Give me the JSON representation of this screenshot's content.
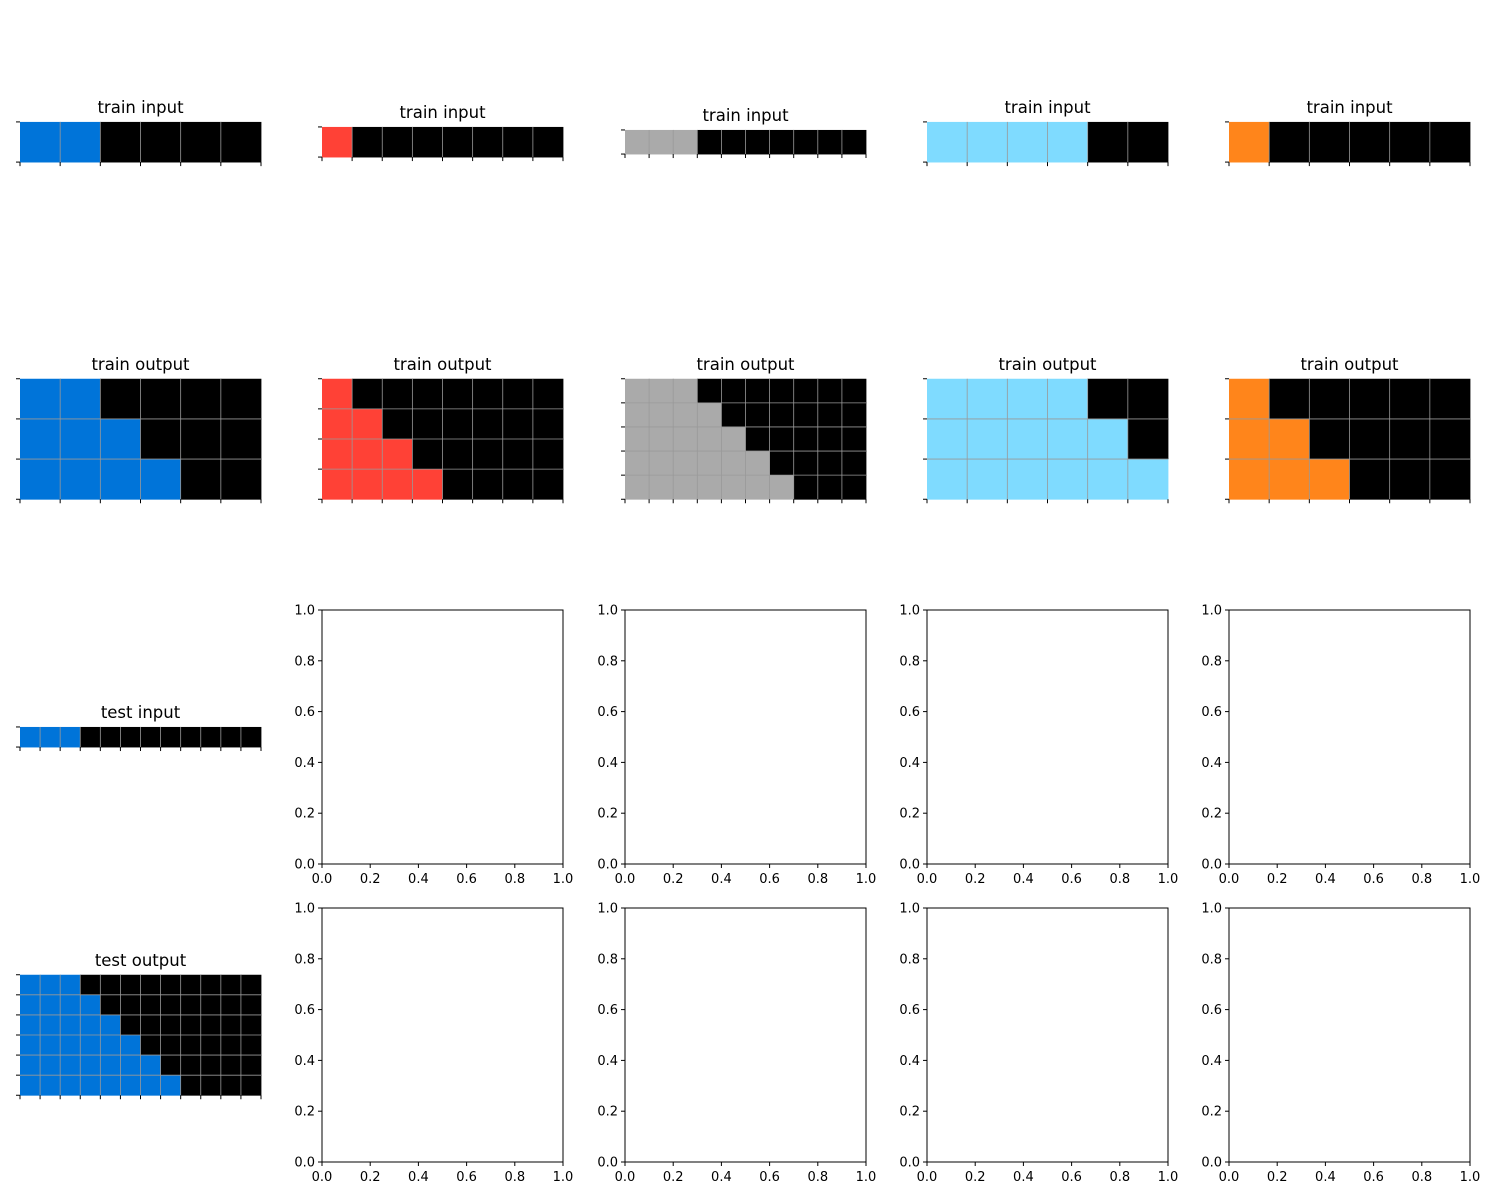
{
  "palette": {
    "0": "#000000",
    "1": "#0074D9",
    "2": "#FF4136",
    "5": "#AAAAAA",
    "7": "#FF851B",
    "8": "#7FDBFF"
  },
  "grid_line_color": "#999999",
  "panels": [
    {
      "id": "train-input-1",
      "title": "train input",
      "grid": [
        [
          1,
          1,
          0,
          0,
          0,
          0
        ]
      ]
    },
    {
      "id": "train-input-2",
      "title": "train input",
      "grid": [
        [
          2,
          0,
          0,
          0,
          0,
          0,
          0,
          0
        ]
      ]
    },
    {
      "id": "train-input-3",
      "title": "train input",
      "grid": [
        [
          5,
          5,
          5,
          0,
          0,
          0,
          0,
          0,
          0,
          0
        ]
      ]
    },
    {
      "id": "train-input-4",
      "title": "train input",
      "grid": [
        [
          8,
          8,
          8,
          8,
          0,
          0
        ]
      ]
    },
    {
      "id": "train-input-5",
      "title": "train input",
      "grid": [
        [
          7,
          0,
          0,
          0,
          0,
          0
        ]
      ]
    },
    {
      "id": "train-output-1",
      "title": "train output",
      "grid": [
        [
          1,
          1,
          0,
          0,
          0,
          0
        ],
        [
          1,
          1,
          1,
          0,
          0,
          0
        ],
        [
          1,
          1,
          1,
          1,
          0,
          0
        ]
      ]
    },
    {
      "id": "train-output-2",
      "title": "train output",
      "grid": [
        [
          2,
          0,
          0,
          0,
          0,
          0,
          0,
          0
        ],
        [
          2,
          2,
          0,
          0,
          0,
          0,
          0,
          0
        ],
        [
          2,
          2,
          2,
          0,
          0,
          0,
          0,
          0
        ],
        [
          2,
          2,
          2,
          2,
          0,
          0,
          0,
          0
        ]
      ]
    },
    {
      "id": "train-output-3",
      "title": "train output",
      "grid": [
        [
          5,
          5,
          5,
          0,
          0,
          0,
          0,
          0,
          0,
          0
        ],
        [
          5,
          5,
          5,
          5,
          0,
          0,
          0,
          0,
          0,
          0
        ],
        [
          5,
          5,
          5,
          5,
          5,
          0,
          0,
          0,
          0,
          0
        ],
        [
          5,
          5,
          5,
          5,
          5,
          5,
          0,
          0,
          0,
          0
        ],
        [
          5,
          5,
          5,
          5,
          5,
          5,
          5,
          0,
          0,
          0
        ]
      ]
    },
    {
      "id": "train-output-4",
      "title": "train output",
      "grid": [
        [
          8,
          8,
          8,
          8,
          0,
          0
        ],
        [
          8,
          8,
          8,
          8,
          8,
          0
        ],
        [
          8,
          8,
          8,
          8,
          8,
          8
        ]
      ]
    },
    {
      "id": "train-output-5",
      "title": "train output",
      "grid": [
        [
          7,
          0,
          0,
          0,
          0,
          0
        ],
        [
          7,
          7,
          0,
          0,
          0,
          0
        ],
        [
          7,
          7,
          7,
          0,
          0,
          0
        ]
      ]
    },
    {
      "id": "test-input",
      "title": "test input",
      "grid": [
        [
          1,
          1,
          1,
          0,
          0,
          0,
          0,
          0,
          0,
          0,
          0,
          0
        ]
      ]
    },
    {
      "id": "test-output",
      "title": "test output",
      "grid": [
        [
          1,
          1,
          1,
          0,
          0,
          0,
          0,
          0,
          0,
          0,
          0,
          0
        ],
        [
          1,
          1,
          1,
          1,
          0,
          0,
          0,
          0,
          0,
          0,
          0,
          0
        ],
        [
          1,
          1,
          1,
          1,
          1,
          0,
          0,
          0,
          0,
          0,
          0,
          0
        ],
        [
          1,
          1,
          1,
          1,
          1,
          1,
          0,
          0,
          0,
          0,
          0,
          0
        ],
        [
          1,
          1,
          1,
          1,
          1,
          1,
          1,
          0,
          0,
          0,
          0,
          0
        ],
        [
          1,
          1,
          1,
          1,
          1,
          1,
          1,
          1,
          0,
          0,
          0,
          0
        ]
      ]
    }
  ],
  "empty_axes": {
    "count": 8,
    "xticks": [
      "0.0",
      "0.2",
      "0.4",
      "0.6",
      "0.8",
      "1.0"
    ],
    "yticks": [
      "0.0",
      "0.2",
      "0.4",
      "0.6",
      "0.8",
      "1.0"
    ]
  }
}
